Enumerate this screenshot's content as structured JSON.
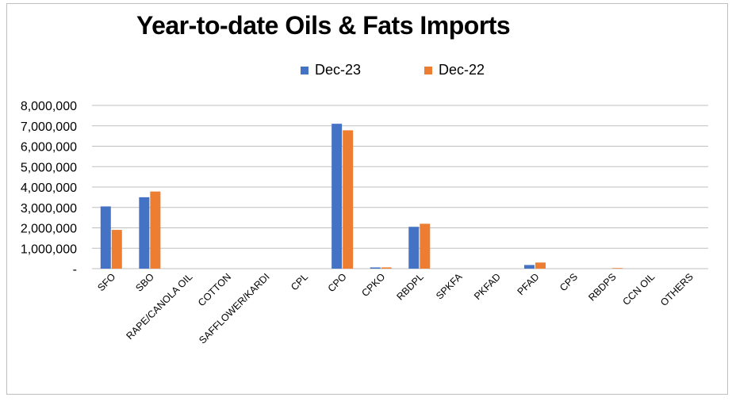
{
  "chart_data": {
    "type": "bar",
    "title": "Year-to-date Oils & Fats Imports",
    "categories": [
      "SFO",
      "SBO",
      "RAPE/CANOLA OIL",
      "COTTON",
      "SAFFLOWER/KARDI",
      "CPL",
      "CPO",
      "CPKO",
      "RBDPL",
      "SPKFA",
      "PKFAD",
      "PFAD",
      "CPS",
      "RBDPS",
      "CCN OIL",
      "OTHERS"
    ],
    "series": [
      {
        "name": "Dec-23",
        "color": "#4472c4",
        "values": [
          3050000,
          3500000,
          0,
          0,
          0,
          0,
          7100000,
          60000,
          2050000,
          0,
          0,
          180000,
          0,
          0,
          0,
          0
        ]
      },
      {
        "name": "Dec-22",
        "color": "#ed7d31",
        "values": [
          1900000,
          3780000,
          0,
          0,
          0,
          0,
          6780000,
          60000,
          2200000,
          0,
          0,
          300000,
          0,
          30000,
          0,
          0
        ]
      }
    ],
    "ylim": [
      0,
      8000000
    ],
    "yticks": [
      0,
      1000000,
      2000000,
      3000000,
      4000000,
      5000000,
      6000000,
      7000000,
      8000000
    ],
    "ytick_labels": [
      "-",
      "1,000,000",
      "2,000,000",
      "3,000,000",
      "4,000,000",
      "5,000,000",
      "6,000,000",
      "7,000,000",
      "8,000,000"
    ],
    "grid": true,
    "legend_position": "top-center",
    "xlabel": "",
    "ylabel": ""
  }
}
